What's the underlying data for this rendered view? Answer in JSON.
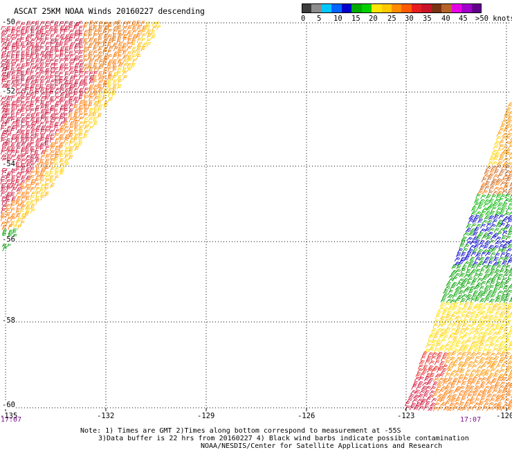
{
  "title": "ASCAT 25KM NOAA Winds 20160227 descending",
  "colorbar": {
    "colors": [
      "#3c3c3c",
      "#8c8c8c",
      "#00c8ff",
      "#0064ff",
      "#0000c8",
      "#00aa00",
      "#00d000",
      "#ffe600",
      "#ffc800",
      "#ff8c00",
      "#ff5a00",
      "#e61e1e",
      "#c81428",
      "#783214",
      "#b46428",
      "#e600e6",
      "#a000c8",
      "#64008c"
    ],
    "labels": [
      "0",
      "5",
      "10",
      "15",
      "20",
      "25",
      "30",
      "35",
      "40",
      "45",
      ">50 knots"
    ]
  },
  "map": {
    "lat_labels": [
      "-50",
      "-52",
      "-54",
      "-56",
      "-58",
      "-60"
    ],
    "lon_labels": [
      "-135",
      "-132",
      "-129",
      "-126",
      "-123",
      "-120"
    ],
    "time_labels": [
      "17:07",
      "17:07"
    ]
  },
  "notes": {
    "line1": "Note: 1) Times are GMT 2)Times along bottom correspond to measurement at -55S",
    "line2": "3)Data buffer is 22 hrs from 20160227 4) Black wind barbs indicate possible contamination",
    "line3": "NOAA/NESDIS/Center for Satellite Applications and Research"
  },
  "swaths": {
    "left": {
      "speed_knots_range": [
        15,
        40
      ],
      "dominant_colors": [
        "#d2143c",
        "#ff7800",
        "#ffd200",
        "#00aa00"
      ]
    },
    "right": {
      "speed_knots_range": [
        10,
        35
      ],
      "dominant_colors": [
        "#ffd200",
        "#ff7800",
        "#00aa00",
        "#0000c8",
        "#d2143c"
      ]
    }
  }
}
